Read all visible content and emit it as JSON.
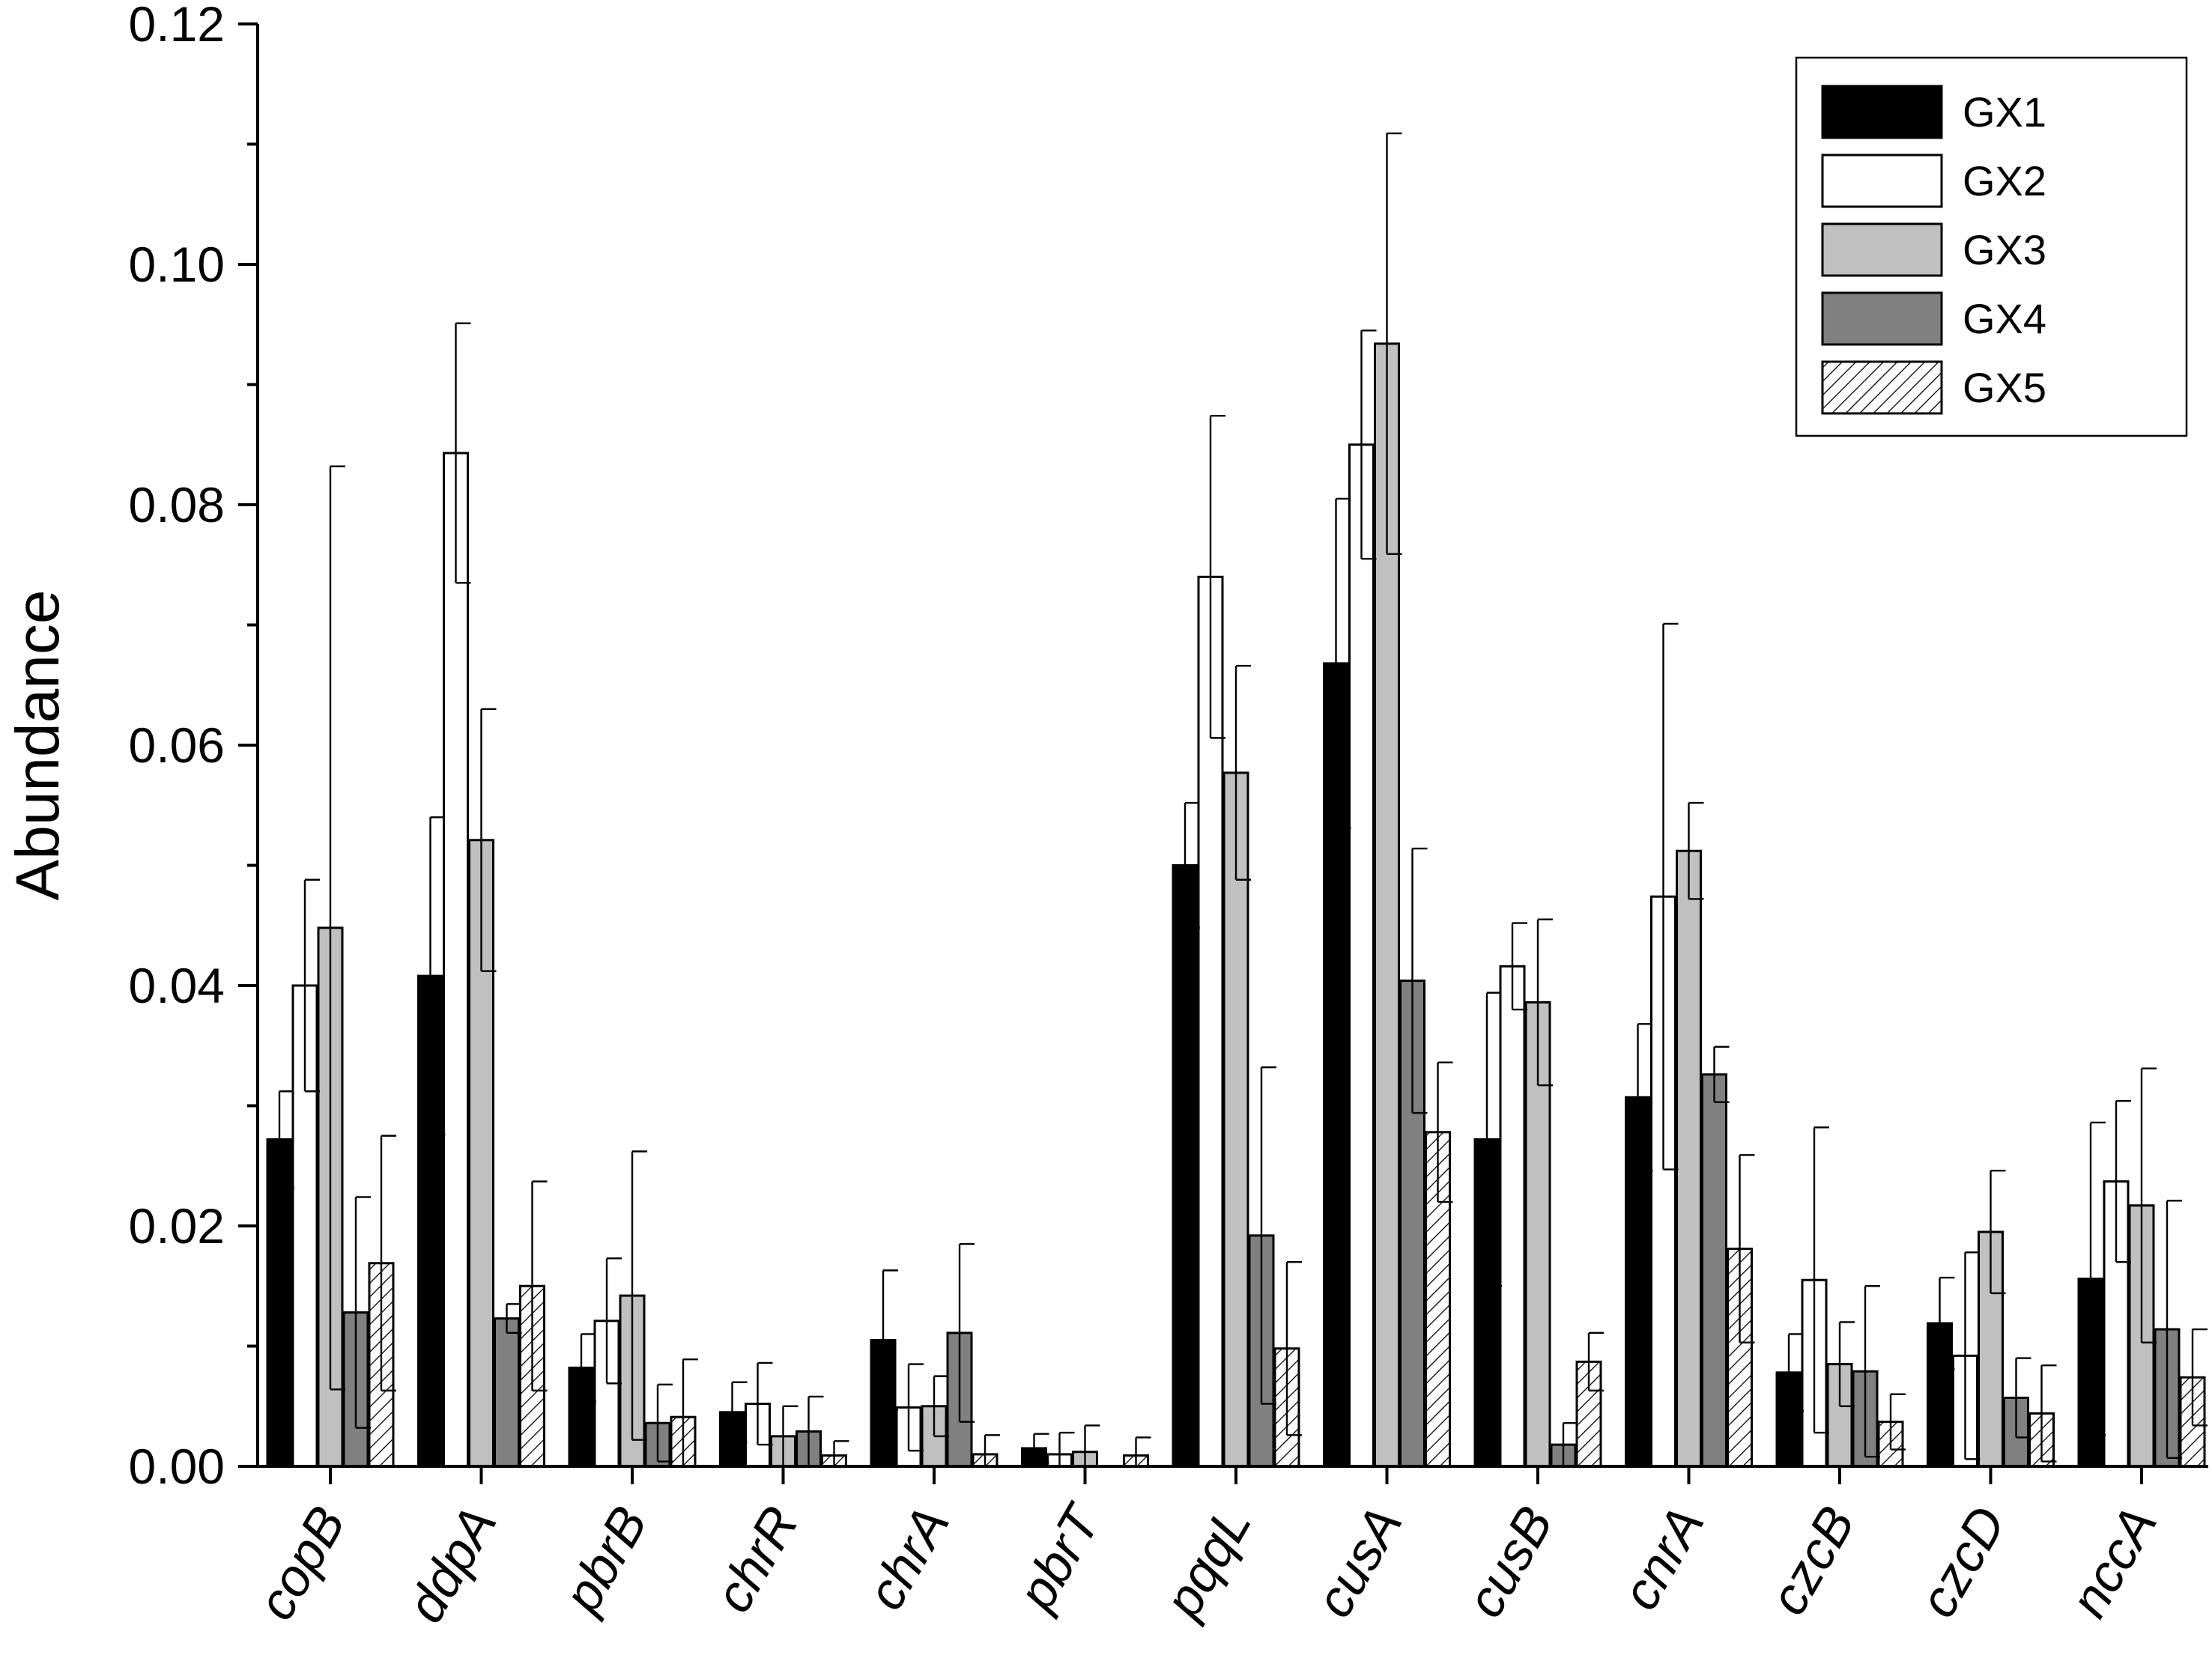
{
  "chart_data": {
    "type": "bar",
    "title": "",
    "xlabel": "",
    "ylabel": "Abundance",
    "ylim": [
      0,
      0.12
    ],
    "yticks": [
      "0.00",
      "0.02",
      "0.04",
      "0.06",
      "0.08",
      "0.10",
      "0.12"
    ],
    "grid": false,
    "legend_position": "top-right",
    "categories": [
      "copB",
      "ddpA",
      "pbrB",
      "chrR",
      "chrA",
      "pbrT",
      "pqqL",
      "cusA",
      "cusB",
      "cnrA",
      "czcB",
      "czcD",
      "nccA"
    ],
    "series": [
      {
        "name": "GX1",
        "fill": "#000000",
        "pattern": "solid",
        "values": [
          0.0272,
          0.0408,
          0.0082,
          0.0045,
          0.0105,
          0.0015,
          0.05,
          0.0668,
          0.0272,
          0.0307,
          0.0078,
          0.0119,
          0.0156
        ],
        "errors": [
          0.004,
          0.0132,
          0.0028,
          0.0025,
          0.0058,
          0.0012,
          0.0052,
          0.0137,
          0.0122,
          0.0061,
          0.0032,
          0.0038,
          0.013
        ]
      },
      {
        "name": "GX2",
        "fill": "#ffffff",
        "pattern": "solid",
        "values": [
          0.04,
          0.0843,
          0.0121,
          0.0052,
          0.0049,
          0.001,
          0.074,
          0.085,
          0.0416,
          0.0474,
          0.0155,
          0.0092,
          0.0237
        ],
        "errors": [
          0.0088,
          0.0108,
          0.0052,
          0.0034,
          0.0036,
          0.0018,
          0.0134,
          0.0095,
          0.0036,
          0.0227,
          0.0127,
          0.0086,
          0.0067
        ]
      },
      {
        "name": "GX3",
        "fill": "#c0c0c0",
        "pattern": "solid",
        "values": [
          0.0448,
          0.0521,
          0.0142,
          0.0025,
          0.005,
          0.0012,
          0.0577,
          0.0934,
          0.0386,
          0.0512,
          0.0085,
          0.0195,
          0.0217
        ],
        "errors": [
          0.0384,
          0.0109,
          0.012,
          0.0025,
          0.0025,
          0.0022,
          0.0089,
          0.0175,
          0.0069,
          0.004,
          0.0035,
          0.0051,
          0.0114
        ]
      },
      {
        "name": "GX4",
        "fill": "#808080",
        "pattern": "solid",
        "values": [
          0.0128,
          0.0123,
          0.0036,
          0.0029,
          0.0111,
          0.0,
          0.0192,
          0.0404,
          0.0018,
          0.0326,
          0.0079,
          0.0057,
          0.0114
        ],
        "errors": [
          0.0096,
          0.0012,
          0.0032,
          0.0029,
          0.0074,
          0.0,
          0.014,
          0.011,
          0.0018,
          0.0023,
          0.0071,
          0.0033,
          0.0107
        ]
      },
      {
        "name": "GX5",
        "fill": "#ffffff",
        "pattern": "hatch",
        "values": [
          0.0169,
          0.015,
          0.0041,
          0.0009,
          0.001,
          0.0009,
          0.0098,
          0.0278,
          0.0087,
          0.0181,
          0.0037,
          0.0044,
          0.0074
        ],
        "errors": [
          0.0106,
          0.0087,
          0.0048,
          0.0012,
          0.0016,
          0.0015,
          0.0072,
          0.0058,
          0.0024,
          0.0078,
          0.0023,
          0.004,
          0.004
        ]
      }
    ]
  }
}
